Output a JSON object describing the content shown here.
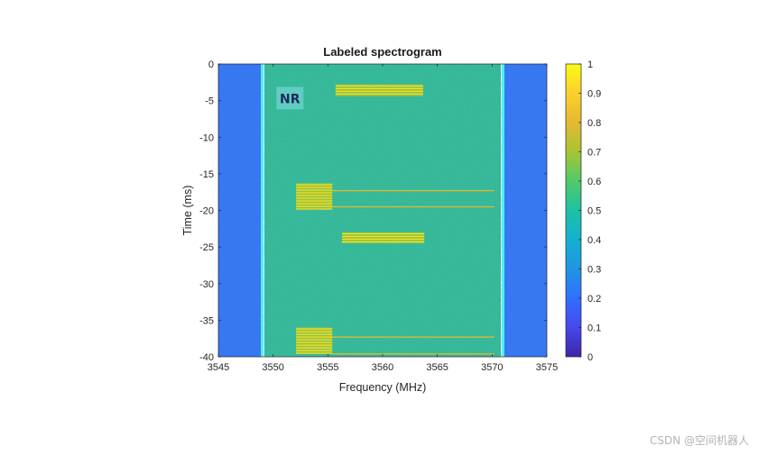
{
  "chart_data": {
    "type": "heatmap",
    "title": "Labeled spectrogram",
    "xlabel": "Frequency (MHz)",
    "ylabel": "Time (ms)",
    "xlim": [
      3545,
      3575
    ],
    "ylim": [
      -40,
      0
    ],
    "x_ticks": [
      3545,
      3550,
      3555,
      3560,
      3565,
      3570,
      3575
    ],
    "y_ticks": [
      0,
      -5,
      -10,
      -15,
      -20,
      -25,
      -30,
      -35,
      -40
    ],
    "colorbar": {
      "ticks": [
        0,
        0.1,
        0.2,
        0.3,
        0.4,
        0.5,
        0.6,
        0.7,
        0.8,
        0.9,
        1
      ],
      "range": [
        0,
        1
      ],
      "colormap": "parula"
    },
    "bands": [
      {
        "from_mhz": 3545,
        "to_mhz": 3549,
        "level": 0.22
      },
      {
        "from_mhz": 3549.2,
        "to_mhz": 3570.8,
        "level": 0.53
      },
      {
        "from_mhz": 3571,
        "to_mhz": 3575,
        "level": 0.22
      }
    ],
    "boundary_lines_mhz": [
      3549,
      3571
    ],
    "signals": [
      {
        "f0": 3555.7,
        "f1": 3563.7,
        "t0": -2.8,
        "t1": -4.4,
        "level": 0.85
      },
      {
        "f0": 3552.1,
        "f1": 3555.4,
        "t0": -16.3,
        "t1": -19.8,
        "level": 0.85
      },
      {
        "f0": 3556.3,
        "f1": 3563.8,
        "t0": -23.0,
        "t1": -24.5,
        "level": 0.85
      },
      {
        "f0": 3552.1,
        "f1": 3555.4,
        "t0": -36.0,
        "t1": -39.6,
        "level": 0.85
      }
    ],
    "lines": [
      {
        "f0": 3555.4,
        "f1": 3570.2,
        "t": -17.3,
        "level": 0.8
      },
      {
        "f0": 3555.4,
        "f1": 3570.2,
        "t": -19.5,
        "level": 0.8
      },
      {
        "f0": 3555.4,
        "f1": 3570.2,
        "t": -37.3,
        "level": 0.8
      },
      {
        "f0": 3555.4,
        "f1": 3570.2,
        "t": -39.6,
        "level": 0.8
      }
    ],
    "annotations": [
      {
        "text": "NR",
        "x_mhz": 3550.3,
        "y_ms": -3.0
      }
    ]
  },
  "watermark": "CSDN @空间机器人",
  "colors": {
    "boundary": "#4ef0f4",
    "annotation_box": "#6fd3cf"
  }
}
